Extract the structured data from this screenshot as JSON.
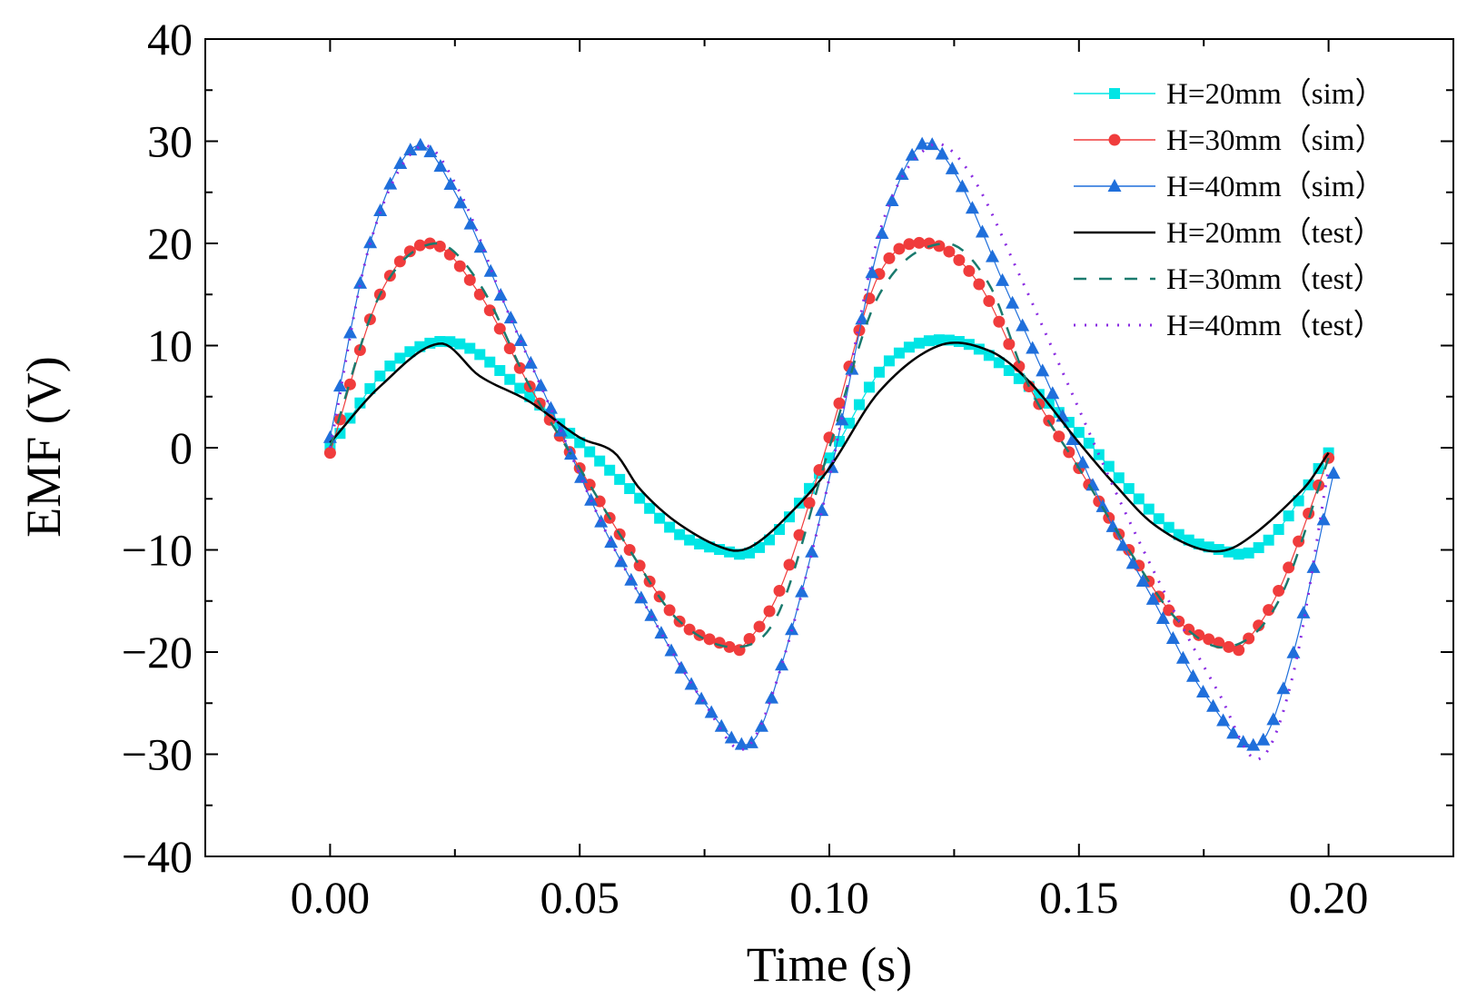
{
  "chart_data": {
    "type": "line",
    "title": "",
    "xlabel": "Time (s)",
    "ylabel": "EMF (V)",
    "xlim": [
      -0.025,
      0.225
    ],
    "ylim": [
      -40,
      40
    ],
    "x_ticks": [
      0.0,
      0.05,
      0.1,
      0.15,
      0.2
    ],
    "x_tick_labels": [
      "0.00",
      "0.05",
      "0.10",
      "0.15",
      "0.20"
    ],
    "y_ticks": [
      40,
      30,
      20,
      10,
      0,
      -10,
      -20,
      -30,
      -40
    ],
    "y_tick_labels": [
      "40",
      "30",
      "20",
      "10",
      "0",
      "−10",
      "−20",
      "−30",
      "−40"
    ],
    "grid": false,
    "legend_position": "top-right",
    "series": [
      {
        "name": "H=20mm（sim）",
        "color": "#00e5e5",
        "line": "solid",
        "marker": "square",
        "x": [
          0.0,
          0.012,
          0.025,
          0.04,
          0.05,
          0.06,
          0.07,
          0.08,
          0.084,
          0.09,
          0.1,
          0.112,
          0.126,
          0.14,
          0.15,
          0.16,
          0.17,
          0.18,
          0.184,
          0.19,
          0.2
        ],
        "values": [
          0,
          8,
          10.3,
          5,
          0.5,
          -4,
          -8.5,
          -10.2,
          -10.3,
          -8,
          -1,
          8.5,
          10.4,
          6,
          1.5,
          -4,
          -8.5,
          -10.2,
          -10.3,
          -8,
          -0.5
        ]
      },
      {
        "name": "H=30mm（sim）",
        "color": "#f03c3c",
        "line": "solid",
        "marker": "circle",
        "x": [
          0.0,
          0.01,
          0.02,
          0.03,
          0.04,
          0.05,
          0.06,
          0.07,
          0.08,
          0.082,
          0.09,
          0.1,
          0.11,
          0.12,
          0.13,
          0.14,
          0.15,
          0.16,
          0.17,
          0.18,
          0.182,
          0.19,
          0.2
        ],
        "values": [
          -0.5,
          15,
          20,
          15,
          6,
          -2,
          -10,
          -17,
          -19.5,
          -19.8,
          -14,
          1,
          17,
          20,
          16,
          6,
          -2,
          -10,
          -17,
          -19.5,
          -19.8,
          -14,
          -1
        ]
      },
      {
        "name": "H=40mm（sim）",
        "color": "#1f6fdb",
        "line": "solid",
        "marker": "triangle",
        "x": [
          0.0,
          0.008,
          0.017,
          0.025,
          0.035,
          0.045,
          0.055,
          0.065,
          0.075,
          0.084,
          0.09,
          0.1,
          0.11,
          0.118,
          0.125,
          0.135,
          0.145,
          0.155,
          0.165,
          0.175,
          0.186,
          0.193,
          0.201
        ],
        "values": [
          1,
          20,
          29.5,
          25,
          14,
          3,
          -8,
          -17,
          -25,
          -29,
          -22,
          -3,
          20,
          29.5,
          27,
          16,
          5,
          -6,
          -15,
          -24,
          -29,
          -20,
          -2.5
        ]
      },
      {
        "name": "H=20mm（test）",
        "color": "#000000",
        "line": "solid",
        "marker": "none",
        "x": [
          0.0,
          0.01,
          0.022,
          0.03,
          0.04,
          0.05,
          0.057,
          0.062,
          0.07,
          0.08,
          0.085,
          0.093,
          0.1,
          0.11,
          0.122,
          0.132,
          0.14,
          0.15,
          0.157,
          0.165,
          0.175,
          0.182,
          0.195,
          0.2
        ],
        "values": [
          0.5,
          6,
          10.2,
          7,
          4.5,
          1,
          -0.5,
          -4,
          -7.5,
          -10,
          -9.5,
          -6,
          -2,
          5.5,
          10,
          9.5,
          6.5,
          0.5,
          -3.5,
          -7.5,
          -10,
          -9.5,
          -4,
          -0.5
        ]
      },
      {
        "name": "H=30mm（test）",
        "color": "#1a7a6e",
        "line": "dashed",
        "marker": "none",
        "x": [
          0.0,
          0.01,
          0.021,
          0.03,
          0.04,
          0.05,
          0.06,
          0.07,
          0.082,
          0.09,
          0.1,
          0.11,
          0.123,
          0.132,
          0.14,
          0.15,
          0.16,
          0.17,
          0.18,
          0.19,
          0.2
        ],
        "values": [
          0,
          15,
          20,
          16,
          6,
          -2,
          -10,
          -17,
          -19.5,
          -16,
          0,
          15,
          20,
          16,
          6,
          -2,
          -10,
          -17,
          -19.5,
          -15,
          -1
        ]
      },
      {
        "name": "H=40mm（test）",
        "color": "#8a2be2",
        "line": "dotted",
        "marker": "none",
        "x": [
          0.0,
          0.008,
          0.018,
          0.026,
          0.035,
          0.045,
          0.055,
          0.065,
          0.075,
          0.083,
          0.09,
          0.1,
          0.11,
          0.12,
          0.128,
          0.138,
          0.148,
          0.158,
          0.168,
          0.178,
          0.186,
          0.193,
          0.2
        ],
        "values": [
          0,
          20,
          29.5,
          25,
          14,
          3,
          -8,
          -17,
          -25,
          -29.5,
          -22,
          -3,
          21,
          29.5,
          27,
          17,
          6,
          -5,
          -15,
          -24,
          -30.5,
          -22,
          -2
        ]
      }
    ]
  }
}
